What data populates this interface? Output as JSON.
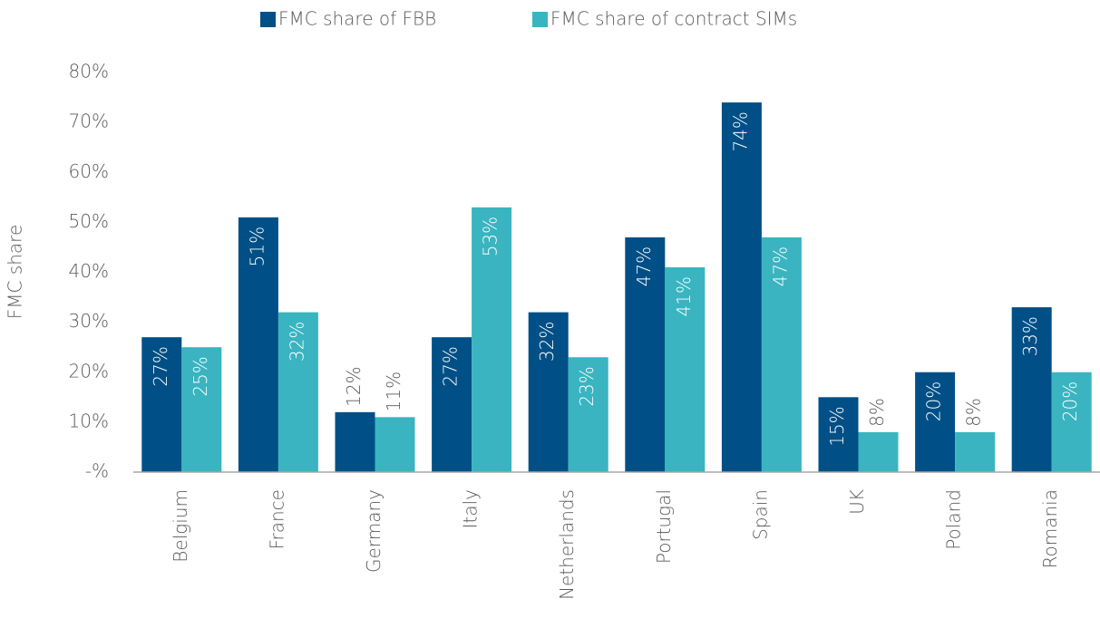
{
  "chart_data": {
    "type": "bar",
    "y_label": "FMC share",
    "categories": [
      "Belgium",
      "France",
      "Germany",
      "Italy",
      "Netherlands",
      "Portugal",
      "Spain",
      "UK",
      "Poland",
      "Romania"
    ],
    "series": [
      {
        "name": "FMC share of FBB",
        "color": "#004f86",
        "values": [
          27,
          51,
          12,
          27,
          32,
          47,
          74,
          15,
          20,
          33
        ],
        "value_labels": [
          "27%",
          "51%",
          "12%",
          "27%",
          "32%",
          "47%",
          "74%",
          "15%",
          "20%",
          "33%"
        ]
      },
      {
        "name": "FMC share of contract SIMs",
        "color": "#3ab4c0",
        "values": [
          25,
          32,
          11,
          53,
          23,
          41,
          47,
          8,
          8,
          20
        ],
        "value_labels": [
          "25%",
          "32%",
          "11%",
          "53%",
          "23%",
          "41%",
          "47%",
          "8%",
          "8%",
          "20%"
        ]
      }
    ],
    "ylim": [
      0,
      80
    ],
    "yticks": [
      {
        "value": 0,
        "label": "-%"
      },
      {
        "value": 10,
        "label": "10%"
      },
      {
        "value": 20,
        "label": "20%"
      },
      {
        "value": 30,
        "label": "30%"
      },
      {
        "value": 40,
        "label": "40%"
      },
      {
        "value": 50,
        "label": "50%"
      },
      {
        "value": 60,
        "label": "60%"
      },
      {
        "value": 70,
        "label": "70%"
      },
      {
        "value": 80,
        "label": "80%"
      }
    ],
    "legend": "top"
  }
}
